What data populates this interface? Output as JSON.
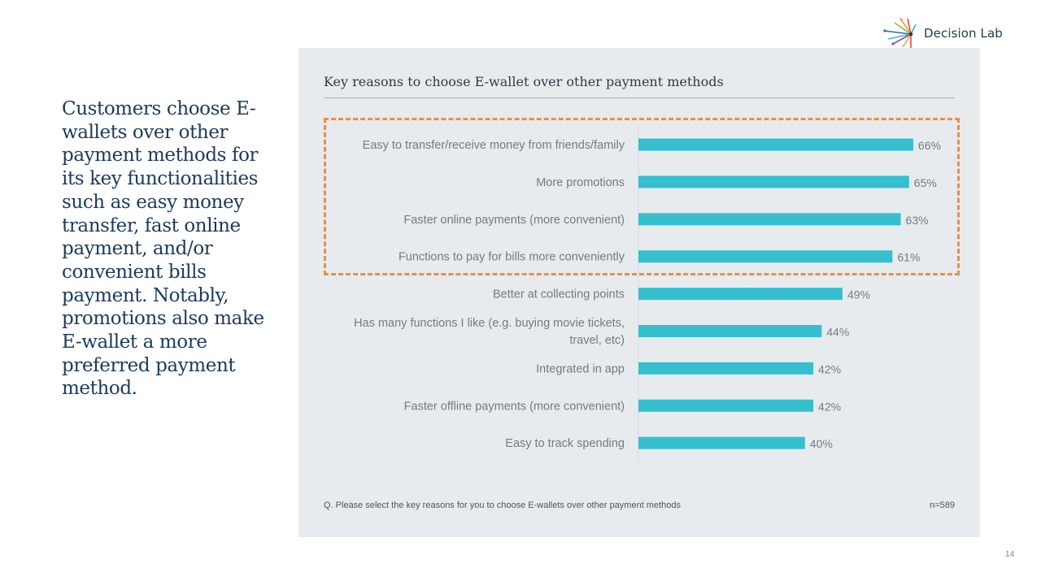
{
  "brand": {
    "logo_name": "Decision Lab",
    "colors": [
      "#f0a030",
      "#e5473c",
      "#3bb6c8",
      "#7bbf4a",
      "#2c6ea3",
      "#8e4fa8"
    ]
  },
  "headline": "Customers choose E-wallets over other payment methods for its key functionalities such as easy money transfer, fast online payment, and/or convenient bills payment. Notably, promotions also make E-wallet a more preferred payment method.",
  "footnote": "Q. Please select the key reasons for you to choose E-wallets over other payment methods",
  "sample_size": "n=589",
  "page_number": "14",
  "colors": {
    "bar": "#35bfcf",
    "highlight": "#ef8d3c",
    "panel": "#e7ebee"
  },
  "chart_data": {
    "type": "bar",
    "orientation": "horizontal",
    "title": "Key reasons to choose E-wallet over other payment methods",
    "categories": [
      "Easy to transfer/receive money from friends/family",
      "More promotions",
      "Faster online payments (more convenient)",
      "Functions to pay for bills more conveniently",
      "Better at collecting points",
      "Has many functions I like (e.g. buying movie tickets, travel, etc)",
      "Integrated in app",
      "Faster offline payments (more convenient)",
      "Easy to track spending"
    ],
    "values": [
      66,
      65,
      63,
      61,
      49,
      44,
      42,
      42,
      40
    ],
    "value_labels": [
      "66%",
      "65%",
      "63%",
      "61%",
      "49%",
      "44%",
      "42%",
      "42%",
      "40%"
    ],
    "unit": "%",
    "highlighted_categories": 4,
    "xlim": [
      0,
      100
    ],
    "grid": false,
    "legend": "none"
  }
}
